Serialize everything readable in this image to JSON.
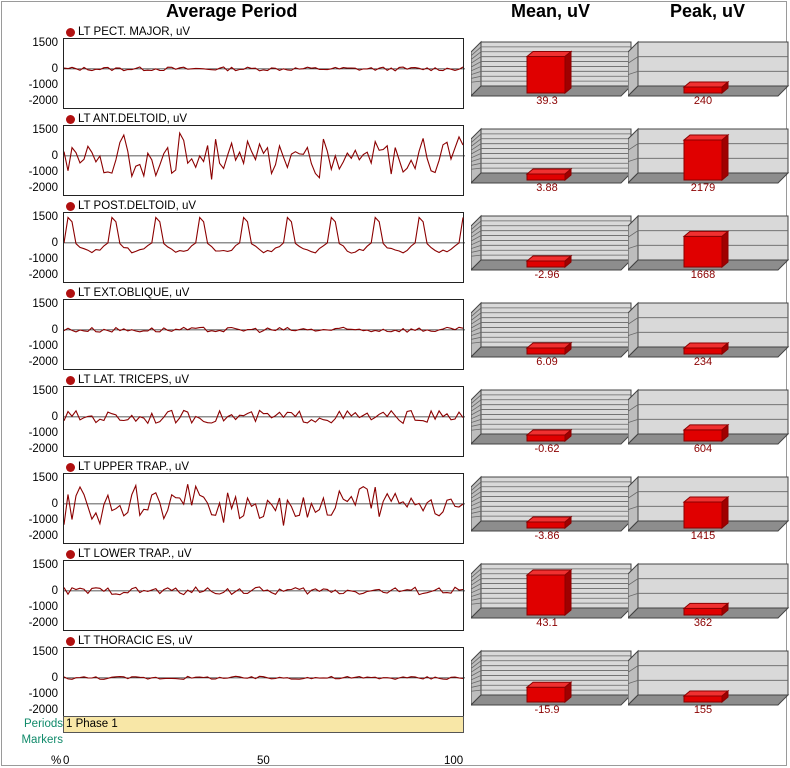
{
  "headers": {
    "average_period": "Average Period",
    "mean": "Mean, uV",
    "peak": "Peak, uV"
  },
  "footer": {
    "periods_label": "Periods",
    "markers_label": "Markers",
    "phase_label": "1 Phase 1",
    "x_unit": "%"
  },
  "colors": {
    "trace": "#8b0000",
    "bar": "#e00000",
    "bar_dark": "#8b0000",
    "panel": "#d9d9d9",
    "band": "#f8e7a7",
    "green_text": "#108a6a"
  },
  "chart_data": [
    {
      "type": "line",
      "title": "Average Period",
      "x_ticks": [
        "0",
        "50",
        "100"
      ],
      "xlim": [
        0,
        100
      ],
      "ylim": [
        -2000,
        1500
      ],
      "y_ticks": [
        "1500",
        "0",
        "-1000",
        "-2000"
      ],
      "series": [
        {
          "name": "LT PECT. MAJOR, uV",
          "amplitude": 150,
          "shape": "low"
        },
        {
          "name": "LT ANT.DELTOID, uV",
          "amplitude": 1500,
          "shape": "noisy"
        },
        {
          "name": "LT POST.DELTOID, uV",
          "amplitude": 1500,
          "shape": "periodic"
        },
        {
          "name": "LT EXT.OBLIQUE, uV",
          "amplitude": 200,
          "shape": "low"
        },
        {
          "name": "LT LAT. TRICEPS, uV",
          "amplitude": 500,
          "shape": "medium"
        },
        {
          "name": "LT UPPER TRAP., uV",
          "amplitude": 1300,
          "shape": "noisy"
        },
        {
          "name": "LT LOWER TRAP., uV",
          "amplitude": 300,
          "shape": "medium"
        },
        {
          "name": "LT THORACIC ES, uV",
          "amplitude": 120,
          "shape": "low"
        }
      ]
    },
    {
      "type": "bar",
      "title": "Mean, uV",
      "categories": [
        "LT PECT. MAJOR, uV",
        "LT ANT.DELTOID, uV",
        "LT POST.DELTOID, uV",
        "LT EXT.OBLIQUE, uV",
        "LT LAT. TRICEPS, uV",
        "LT UPPER TRAP., uV",
        "LT LOWER TRAP., uV",
        "LT THORACIC ES, uV"
      ],
      "values": [
        39.3,
        3.88,
        -2.96,
        6.09,
        -0.62,
        -3.86,
        43.1,
        -15.9
      ],
      "labels": [
        "39.3",
        "3.88",
        "-2.96",
        "6.09",
        "-0.62",
        "-3.86",
        "43.1",
        "-15.9"
      ]
    },
    {
      "type": "bar",
      "title": "Peak, uV",
      "categories": [
        "LT PECT. MAJOR, uV",
        "LT ANT.DELTOID, uV",
        "LT POST.DELTOID, uV",
        "LT EXT.OBLIQUE, uV",
        "LT LAT. TRICEPS, uV",
        "LT UPPER TRAP., uV",
        "LT LOWER TRAP., uV",
        "LT THORACIC ES, uV"
      ],
      "values": [
        240,
        2179,
        1668,
        234,
        604,
        1415,
        362,
        155
      ],
      "labels": [
        "240",
        "2179",
        "1668",
        "234",
        "604",
        "1415",
        "362",
        "155"
      ]
    }
  ]
}
